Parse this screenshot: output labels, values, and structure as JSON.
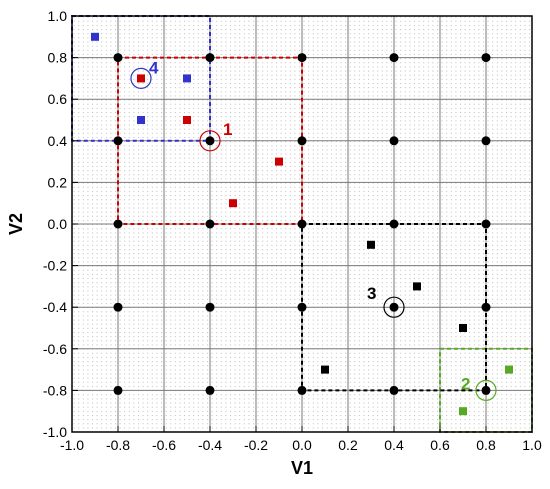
{
  "chart_data": {
    "type": "scatter",
    "xlabel": "V1",
    "ylabel": "V2",
    "xlim": [
      -1.0,
      1.0
    ],
    "ylim": [
      -1.0,
      1.0
    ],
    "x_ticks": [
      "-1.0",
      "-0.8",
      "-0.6",
      "-0.4",
      "-0.2",
      "0.0",
      "0.2",
      "0.4",
      "0.6",
      "0.8",
      "1.0"
    ],
    "y_ticks": [
      "-1.0",
      "-0.8",
      "-0.6",
      "-0.4",
      "-0.2",
      "0.0",
      "0.2",
      "0.4",
      "0.6",
      "0.8",
      "1.0"
    ],
    "grid": true,
    "grid_nodes": {
      "x": [
        -0.8,
        -0.4,
        0.0,
        0.4,
        0.8
      ],
      "y": [
        -0.8,
        -0.4,
        0.0,
        0.4,
        0.8
      ],
      "color": "#000000"
    },
    "regions": [
      {
        "label": "1",
        "color": "#cc0000",
        "center": [
          -0.4,
          0.4
        ],
        "x": [
          -0.8,
          0.0
        ],
        "y": [
          0.0,
          0.8
        ]
      },
      {
        "label": "2",
        "color": "#55aa22",
        "center": [
          0.8,
          -0.8
        ],
        "x": [
          0.6,
          1.0
        ],
        "y": [
          -1.0,
          -0.6
        ]
      },
      {
        "label": "3",
        "color": "#000000",
        "center": [
          0.4,
          -0.4
        ],
        "x": [
          0.0,
          0.8
        ],
        "y": [
          -0.8,
          0.0
        ]
      },
      {
        "label": "4",
        "color": "#3333cc",
        "center": [
          -0.7,
          0.7
        ],
        "x": [
          -1.0,
          -0.4
        ],
        "y": [
          0.4,
          1.0
        ]
      }
    ],
    "series": [
      {
        "color": "#cc0000",
        "points": [
          [
            -0.7,
            0.7
          ],
          [
            -0.5,
            0.5
          ],
          [
            -0.1,
            0.3
          ],
          [
            -0.3,
            0.1
          ]
        ]
      },
      {
        "color": "#3333cc",
        "points": [
          [
            -0.9,
            0.9
          ],
          [
            -0.5,
            0.7
          ],
          [
            -0.7,
            0.5
          ]
        ]
      },
      {
        "color": "#000000",
        "points": [
          [
            0.3,
            -0.1
          ],
          [
            0.5,
            -0.3
          ],
          [
            0.7,
            -0.5
          ],
          [
            0.1,
            -0.7
          ]
        ]
      },
      {
        "color": "#55aa22",
        "points": [
          [
            0.9,
            -0.7
          ],
          [
            0.7,
            -0.9
          ]
        ]
      }
    ]
  }
}
